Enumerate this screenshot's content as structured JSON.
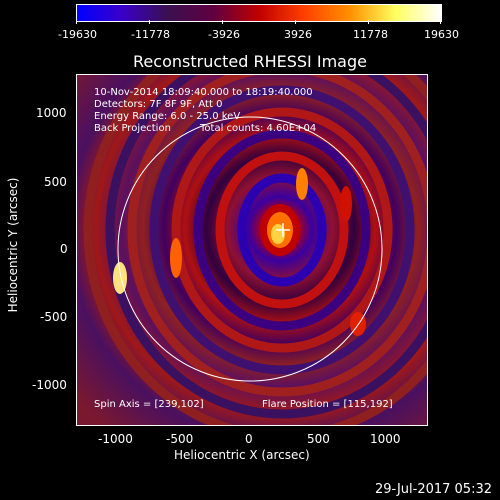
{
  "colorbar": {
    "tick_labels": [
      "-19630",
      "-11778",
      "-3926",
      "3926",
      "11778",
      "19630"
    ],
    "gradient_colors": [
      "#0000ff",
      "#3a00c8",
      "#3a1050",
      "#600040",
      "#c00000",
      "#ff4000",
      "#ff9000",
      "#ffff60",
      "#ffffff"
    ]
  },
  "title": "Reconstructed RHESSI Image",
  "info": {
    "line1": "10-Nov-2014 18:09:40.000 to 18:19:40.000",
    "line2": "Detectors: 7F 8F 9F, Att 0",
    "line3": "Energy Range: 6.0 - 25.0 keV",
    "line4a": "Back Projection",
    "line4b": "Total counts: 4.60E+04",
    "spin_axis": "Spin Axis = [239,102]",
    "flare_position": "Flare Position = [115,192]"
  },
  "axes": {
    "xlabel": "Heliocentric X (arcsec)",
    "ylabel": "Heliocentric Y (arcsec)",
    "x_ticks": [
      "-1000",
      "-500",
      "0",
      "500",
      "1000"
    ],
    "y_ticks": [
      "1000",
      "500",
      "0",
      "-500",
      "-1000"
    ]
  },
  "image": {
    "solar_limb_radius_arcsec": 975,
    "marker_arcsec": [
      239,
      102
    ]
  },
  "footer": "29-Jul-2017 05:32"
}
